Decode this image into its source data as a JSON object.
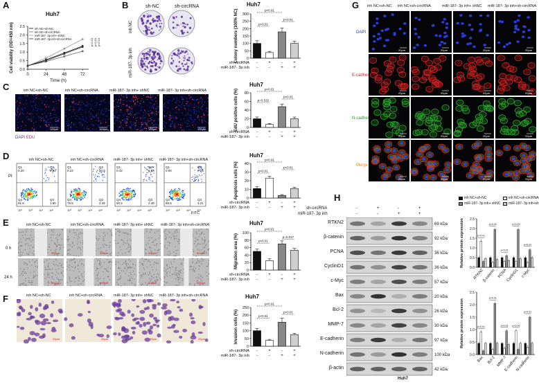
{
  "panels": {
    "A": "A",
    "B": "B",
    "C": "C",
    "D": "D",
    "E": "E",
    "F": "F",
    "G": "G",
    "H": "H"
  },
  "groups": {
    "g1": "inh NC+sh-NC",
    "g2": "inh NC+sh-circRNA",
    "g3": "miR-187- 3p inh+ shNC",
    "g4": "miR-187- 3p inh+sh-circRNA",
    "g4b": "miR-187- 3p inh+sh-circRNA",
    "g3d": "miR-187- 3p inh+ shNC",
    "g4d": "miR-187- 3p inh+sh-circRNA"
  },
  "common": {
    "title": "Huh7",
    "sh_circ": "sh-circRNA",
    "mir_inh": "miR-187- 3p inh",
    "plus": "+",
    "minus": "-"
  },
  "panel_a": {
    "title": "Huh7",
    "ylabel": "Cell viability (OD=450 nm)",
    "xlabel": "Time (h)",
    "legend": [
      "inh NC+sh-NC",
      "inh NC+sh-circRNA",
      "miR-187- 3p inh+ shNC",
      "miR-187- 3p inh+sh-circRNA"
    ],
    "pvals": [
      "p<0.01",
      "p<0.01",
      "p<0.01"
    ]
  },
  "panel_b": {
    "col_labels": [
      "sh-NC",
      "sh-circRNA"
    ],
    "row_labels": [
      "inh NC",
      "miR-187- 3p inh"
    ],
    "title": "Huh7",
    "ylabel": "Colony numbers (100% NC)",
    "pvals": [
      "p<0.01",
      "p<0.01",
      "p<0.01"
    ]
  },
  "panel_c": {
    "stain": "DAPI",
    "stain2": "EDU",
    "scale": "100μm",
    "title": "Huh7",
    "ylabel": "EdU positive cells (%)",
    "pvals": [
      "p<0.01",
      "p=0.532",
      "p<0.01"
    ]
  },
  "panel_d": {
    "title": "Huh7",
    "ylabel": "Apoptosis cells (%)",
    "xaxis": "FITC",
    "yaxis": "PI",
    "pvals": [
      "p<0.01",
      "p<0.01",
      "p<0.01"
    ],
    "quadrants": [
      {
        "q1": "Q1",
        "q1v": "0.20",
        "q2": "Q2",
        "q2v": "6.22",
        "q3": "Q3",
        "q3v": "1.80",
        "q4": "Q4",
        "q4v": "91.8"
      },
      {
        "q1": "Q1",
        "q1v": "0.22",
        "q2": "Q2",
        "q2v": "20.8",
        "q3": "Q3",
        "q3v": "2.48",
        "q4": "Q4",
        "q4v": "76.5"
      },
      {
        "q1": "Q1",
        "q1v": "0.42",
        "q2": "Q2",
        "q2v": "6.94",
        "q3": "Q3",
        "q3v": "2.48",
        "q4": "Q4",
        "q4v": "90.2"
      },
      {
        "q1": "Q1",
        "q1v": "0.94",
        "q2": "Q2",
        "q2v": "7.25",
        "q3": "Q3",
        "q3v": "3.21",
        "q4": "Q4",
        "q4v": "88.6"
      }
    ],
    "ticks": [
      "10²",
      "10³",
      "10⁴",
      "10⁵"
    ]
  },
  "panel_e": {
    "rows": [
      "0 h",
      "24 h"
    ],
    "scale": "500μm",
    "title": "Huh7",
    "ylabel": "Migration area (%)",
    "pvals": [
      "p<0.01",
      "p<0.01",
      "p=0.017"
    ]
  },
  "panel_f": {
    "scale": "20μm",
    "title": "Huh7",
    "ylabel": "Invasion cells (%)",
    "pvals": [
      "p<0.01",
      "p<0.01",
      "p<0.01"
    ]
  },
  "panel_g": {
    "rows": [
      "DAPI",
      "E-cadherin",
      "N-cadherin",
      "Merge"
    ],
    "row_colors": [
      "#2233cc",
      "#cc2222",
      "#229922",
      "#ee8800"
    ],
    "scale": "20μm"
  },
  "panel_h": {
    "footer": "Huh7",
    "proteins": [
      {
        "name": "RTKN2",
        "kda": "69 kDa"
      },
      {
        "name": "β-catenin",
        "kda": "92 kDa"
      },
      {
        "name": "PCNA",
        "kda": "36 kDa"
      },
      {
        "name": "CyclinD1",
        "kda": "36 kDa"
      },
      {
        "name": "c-Myc",
        "kda": "57 kDa"
      },
      {
        "name": "Bax",
        "kda": "20 kDa"
      },
      {
        "name": "Bcl-2",
        "kda": "26 kDa"
      },
      {
        "name": "MMP-7",
        "kda": "30 kDa"
      },
      {
        "name": "E-cadherin",
        "kda": "97 kDa"
      },
      {
        "name": "N-cadherin",
        "kda": "100 kDa"
      },
      {
        "name": "β-actin",
        "kda": "42 kDa"
      }
    ],
    "legend": [
      "inh NC+sh-NC",
      "inh NC+sh-circRNA",
      "miR-187- 3p inh+ shNC",
      "miR-187- 3p inh+sh-circRNA"
    ],
    "ylabel": "Relative protein expression",
    "top_x": [
      "RTKN2",
      "β-catenin",
      "PCNA",
      "CyclinD1",
      "c-Myc"
    ],
    "bot_x": [
      "Bax",
      "Bcl-2",
      "MMP-7",
      "E-cadherin",
      "N-cadherin"
    ],
    "pval": "p<0.01"
  },
  "chart_data": [
    {
      "type": "line",
      "title": "Huh7",
      "xlabel": "Time (h)",
      "ylabel": "Cell viability (OD=450 nm)",
      "x": [
        0,
        24,
        48,
        72
      ],
      "ylim": [
        0,
        2.5
      ],
      "series": [
        {
          "name": "inh NC+sh-NC",
          "values": [
            0.2,
            0.55,
            0.95,
            1.35
          ]
        },
        {
          "name": "inh NC+sh-circRNA",
          "values": [
            0.2,
            0.45,
            0.75,
            1.05
          ]
        },
        {
          "name": "miR-187- 3p inh+ shNC",
          "values": [
            0.2,
            0.65,
            1.2,
            1.75
          ]
        },
        {
          "name": "miR-187- 3p inh+sh-circRNA",
          "values": [
            0.2,
            0.5,
            0.9,
            1.3
          ]
        }
      ]
    },
    {
      "type": "bar",
      "title": "Huh7",
      "ylabel": "Colony numbers (100% NC)",
      "categories": [
        "1",
        "2",
        "3",
        "4"
      ],
      "values": [
        100,
        38,
        178,
        100
      ],
      "errors": [
        18,
        8,
        25,
        15
      ],
      "ylim": [
        0,
        300
      ]
    },
    {
      "type": "bar",
      "title": "Huh7",
      "ylabel": "EdU positive cells (%)",
      "categories": [
        "1",
        "2",
        "3",
        "4"
      ],
      "values": [
        20,
        7,
        48,
        20
      ],
      "errors": [
        4,
        2,
        6,
        4
      ],
      "ylim": [
        0,
        80
      ]
    },
    {
      "type": "bar",
      "title": "Huh7",
      "ylabel": "Apoptosis cells (%)",
      "categories": [
        "1",
        "2",
        "3",
        "4"
      ],
      "values": [
        11,
        23,
        3,
        11
      ],
      "errors": [
        2,
        2,
        1,
        1.5
      ],
      "ylim": [
        0,
        40
      ]
    },
    {
      "type": "bar",
      "title": "Huh7",
      "ylabel": "Migration area (%)",
      "categories": [
        "1",
        "2",
        "3",
        "4"
      ],
      "values": [
        50,
        25,
        70,
        53
      ],
      "errors": [
        6,
        5,
        8,
        5
      ],
      "ylim": [
        0,
        100
      ]
    },
    {
      "type": "bar",
      "title": "Huh7",
      "ylabel": "Invasion cells (%)",
      "categories": [
        "1",
        "2",
        "3",
        "4"
      ],
      "values": [
        100,
        38,
        155,
        75
      ],
      "errors": [
        15,
        6,
        25,
        8
      ],
      "ylim": [
        0,
        250
      ]
    },
    {
      "type": "bar",
      "ylabel": "Relative protein expression",
      "categories": [
        "RTKN2",
        "β-catenin",
        "PCNA",
        "CyclinD1",
        "c-Myc"
      ],
      "ylim": [
        0,
        2.5
      ],
      "series": [
        {
          "name": "inh NC+sh-NC",
          "values": [
            0.5,
            0.5,
            0.5,
            0.5,
            0.5
          ]
        },
        {
          "name": "inh NC+sh-circRNA",
          "values": [
            1.35,
            0.25,
            0.3,
            0.3,
            0.25
          ]
        },
        {
          "name": "miR-187- 3p inh+ shNC",
          "values": [
            0.3,
            1.95,
            0.6,
            1.95,
            0.9
          ]
        },
        {
          "name": "miR-187- 3p inh+sh-circRNA",
          "values": [
            0.45,
            0.4,
            0.35,
            0.45,
            0.5
          ]
        }
      ]
    },
    {
      "type": "bar",
      "ylabel": "Relative protein expression",
      "categories": [
        "Bax",
        "Bcl-2",
        "MMP-7",
        "E-cadherin",
        "N-cadherin"
      ],
      "ylim": [
        0,
        2.5
      ],
      "series": [
        {
          "name": "inh NC+sh-NC",
          "values": [
            0.45,
            0.45,
            0.45,
            0.45,
            0.45
          ]
        },
        {
          "name": "inh NC+sh-circRNA",
          "values": [
            0.9,
            0.2,
            0.25,
            0.95,
            0.3
          ]
        },
        {
          "name": "miR-187- 3p inh+ shNC",
          "values": [
            0.15,
            2.05,
            0.95,
            0.2,
            1.5
          ]
        },
        {
          "name": "miR-187- 3p inh+sh-circRNA",
          "values": [
            0.45,
            0.45,
            0.4,
            0.45,
            0.45
          ]
        }
      ]
    }
  ]
}
